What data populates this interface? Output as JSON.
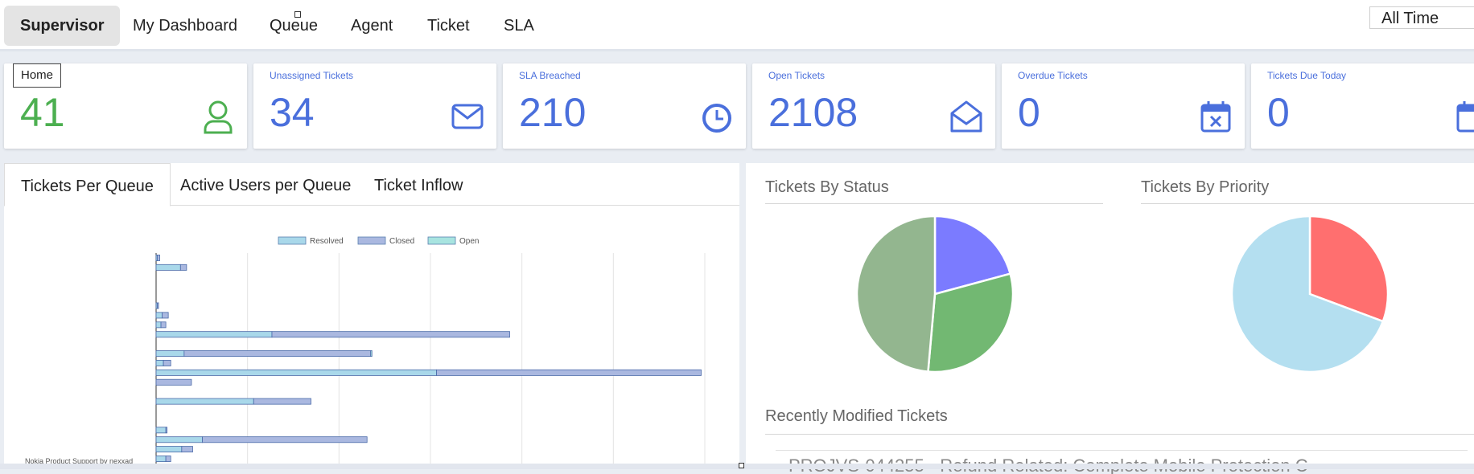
{
  "nav": {
    "tabs": [
      "Supervisor",
      "My Dashboard",
      "Queue",
      "Agent",
      "Ticket",
      "SLA"
    ],
    "time_filter": "All Time"
  },
  "home_label": "Home",
  "cards": [
    {
      "label": "",
      "value": "41",
      "icon": "user-icon",
      "color": "#4caf50"
    },
    {
      "label": "Unassigned Tickets",
      "value": "34",
      "icon": "envelope-icon",
      "color": "#4a6fdc"
    },
    {
      "label": "SLA Breached",
      "value": "210",
      "icon": "clock-icon",
      "color": "#4a6fdc"
    },
    {
      "label": "Open Tickets",
      "value": "2108",
      "icon": "open-envelope-icon",
      "color": "#4a6fdc"
    },
    {
      "label": "Overdue Tickets",
      "value": "0",
      "icon": "calendar-x-icon",
      "color": "#4a6fdc"
    },
    {
      "label": "Tickets Due Today",
      "value": "0",
      "icon": "calendar-icon",
      "color": "#4a6fdc"
    }
  ],
  "chart_tabs": [
    "Tickets Per Queue",
    "Active Users per Queue",
    "Ticket Inflow"
  ],
  "sections": {
    "status_title": "Tickets By Status",
    "priority_title": "Tickets By Priority",
    "recent_title": "Recently Modified Tickets"
  },
  "recent_tickets": [
    "PROJVS-044255 - Refund Related: Complete Mobile Protection C"
  ],
  "chart_data": [
    {
      "type": "bar",
      "orientation": "horizontal",
      "stacked": true,
      "legend": [
        "Resolved",
        "Closed",
        "Open"
      ],
      "legend_position": "top",
      "colors": {
        "Resolved": "#a9d8ea",
        "Closed": "#aab8e0",
        "Open": "#a8e4e0"
      },
      "visible_category_label": "Nokia Product Support by nexxad",
      "series": [
        {
          "name": "Resolved",
          "values": [
            1,
            20,
            0,
            0,
            0,
            1,
            5,
            4,
            95,
            0,
            23,
            6,
            230,
            0,
            0,
            80,
            0,
            0,
            8,
            38,
            21,
            8
          ]
        },
        {
          "name": "Closed",
          "values": [
            2,
            5,
            0,
            0,
            0,
            1,
            5,
            4,
            195,
            0,
            153,
            6,
            217,
            29,
            0,
            47,
            0,
            0,
            1,
            135,
            9,
            4
          ]
        },
        {
          "name": "Open",
          "values": [
            0,
            0,
            0,
            0,
            0,
            0,
            0,
            0,
            0,
            0,
            1,
            0,
            0,
            0,
            0,
            0,
            0,
            0,
            0,
            0,
            0,
            0
          ]
        }
      ],
      "xlim": [
        0,
        450
      ],
      "grid": true
    },
    {
      "type": "pie",
      "title": "Tickets By Status",
      "slices": [
        {
          "value": 20.8,
          "color": "#7b7bff"
        },
        {
          "value": 30.6,
          "color": "#72b872"
        },
        {
          "value": 48.6,
          "color": "#93b68f"
        }
      ]
    },
    {
      "type": "pie",
      "title": "Tickets By Priority",
      "slices": [
        {
          "value": 30.7,
          "color": "#ff6f6f"
        },
        {
          "value": 69.3,
          "color": "#b4dff0"
        }
      ]
    }
  ]
}
